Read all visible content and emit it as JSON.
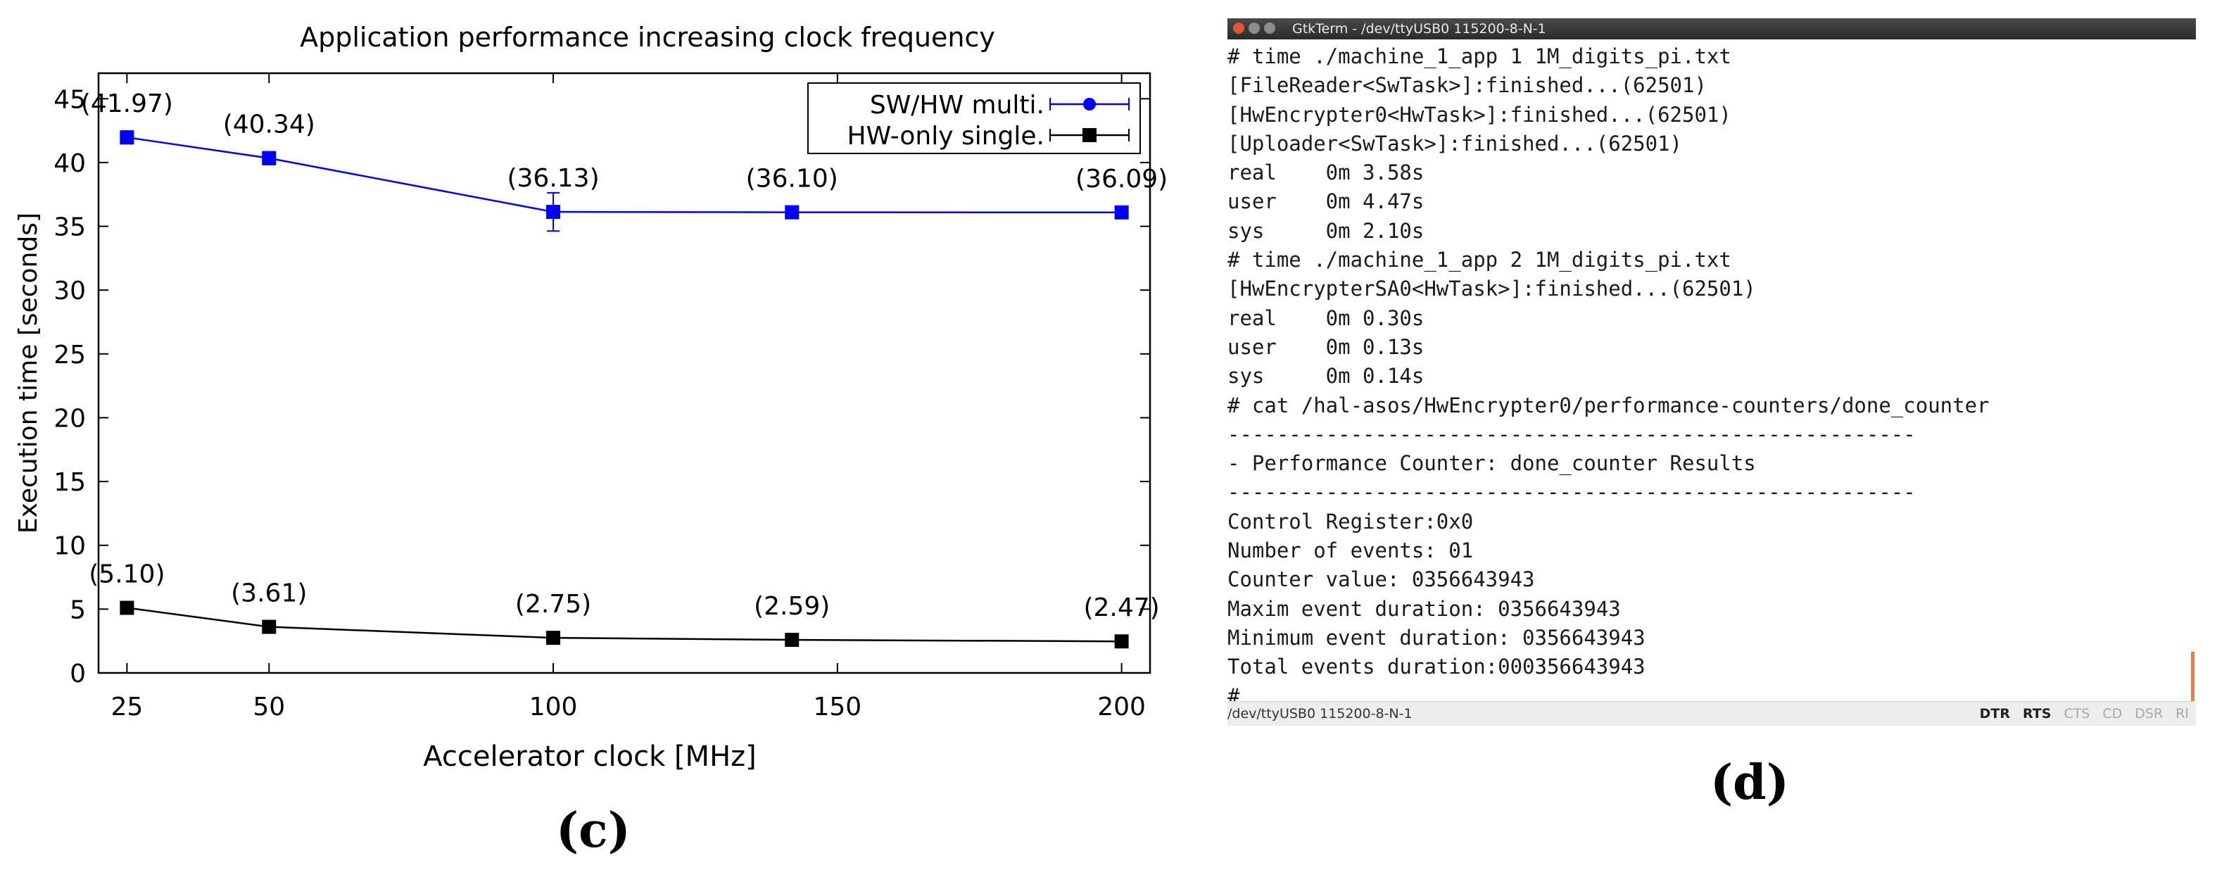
{
  "panels": {
    "left_label": "(c)",
    "right_label": "(d)"
  },
  "chart_data": {
    "type": "line",
    "title": "Application performance increasing clock frequency",
    "xlabel": "Accelerator clock [MHz]",
    "ylabel": "Execution time [seconds]",
    "xlim": [
      20,
      205
    ],
    "ylim": [
      0,
      47
    ],
    "xticks": [
      25,
      50,
      100,
      150,
      200
    ],
    "yticks": [
      0,
      5,
      10,
      15,
      20,
      25,
      30,
      35,
      40,
      45
    ],
    "grid": false,
    "legend_position": "top-right",
    "series": [
      {
        "name": "SW/HW multi.",
        "color": "#0000ff",
        "marker": "square",
        "x": [
          25,
          50,
          100,
          142,
          200
        ],
        "y": [
          41.97,
          40.34,
          36.13,
          36.1,
          36.09
        ],
        "yerr": [
          0.5,
          0.5,
          1.5,
          0.2,
          0.2
        ],
        "labels": [
          "(41.97)",
          "(40.34)",
          "(36.13)",
          "(36.10)",
          "(36.09)"
        ]
      },
      {
        "name": "HW-only single.",
        "color": "#000000",
        "marker": "square",
        "x": [
          25,
          50,
          100,
          142,
          200
        ],
        "y": [
          5.1,
          3.61,
          2.75,
          2.59,
          2.47
        ],
        "yerr": [
          0.1,
          0.1,
          0.1,
          0.1,
          0.1
        ],
        "labels": [
          "(5.10)",
          "(3.61)",
          "(2.75)",
          "(2.59)",
          "(2.47)"
        ]
      }
    ]
  },
  "terminal": {
    "title": "GtkTerm - /dev/ttyUSB0  115200-8-N-1",
    "lines": [
      "# time ./machine_1_app 1 1M_digits_pi.txt",
      "[FileReader<SwTask>]:finished...(62501)",
      "[HwEncrypter0<HwTask>]:finished...(62501)",
      "[Uploader<SwTask>]:finished...(62501)",
      "real    0m 3.58s",
      "user    0m 4.47s",
      "sys     0m 2.10s",
      "# time ./machine_1_app 2 1M_digits_pi.txt",
      "[HwEncrypterSA0<HwTask>]:finished...(62501)",
      "real    0m 0.30s",
      "user    0m 0.13s",
      "sys     0m 0.14s",
      "# cat /hal-asos/HwEncrypter0/performance-counters/done_counter",
      "--------------------------------------------------------",
      "- Performance Counter: done_counter Results",
      "--------------------------------------------------------",
      "Control Register:0x0",
      "Number of events: 01",
      "Counter value: 0356643943",
      "Maxim event duration: 0356643943",
      "Minimum event duration: 0356643943",
      "Total events duration:000356643943",
      "#"
    ],
    "status_left": "/dev/ttyUSB0  115200-8-N-1",
    "signals": [
      {
        "label": "DTR",
        "active": true
      },
      {
        "label": "RTS",
        "active": true
      },
      {
        "label": "CTS",
        "active": false
      },
      {
        "label": "CD",
        "active": false
      },
      {
        "label": "DSR",
        "active": false
      },
      {
        "label": "RI",
        "active": false
      }
    ]
  }
}
